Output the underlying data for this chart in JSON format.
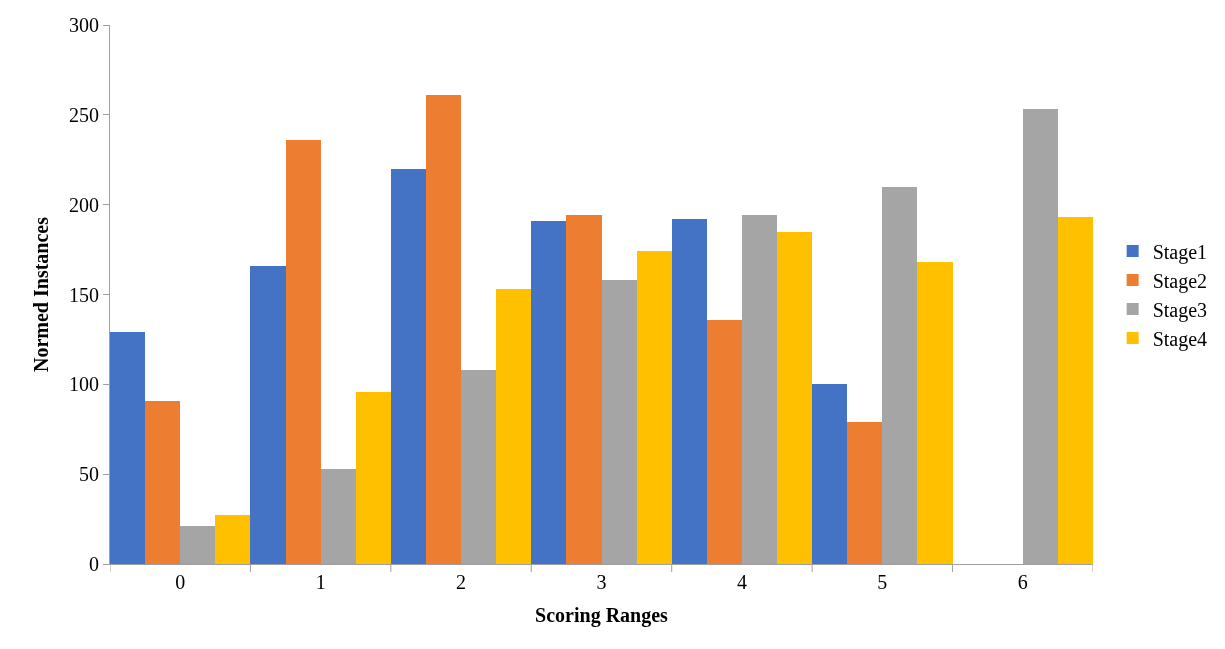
{
  "chart_data": {
    "type": "bar",
    "xlabel": "Scoring Ranges",
    "ylabel": "Normed Instances",
    "categories": [
      "0",
      "1",
      "2",
      "3",
      "4",
      "5",
      "6"
    ],
    "series": [
      {
        "name": "Stage1",
        "color": "#4472c4",
        "values": [
          129,
          166,
          220,
          191,
          192,
          100,
          0
        ]
      },
      {
        "name": "Stage2",
        "color": "#ed7d31",
        "values": [
          91,
          236,
          261,
          194,
          136,
          79,
          0
        ]
      },
      {
        "name": "Stage3",
        "color": "#a5a5a5",
        "values": [
          21,
          53,
          108,
          158,
          194,
          210,
          253
        ]
      },
      {
        "name": "Stage4",
        "color": "#ffc000",
        "values": [
          27,
          96,
          153,
          174,
          185,
          168,
          193
        ]
      }
    ],
    "ylim": [
      0,
      300
    ],
    "yticks": [
      0,
      50,
      100,
      150,
      200,
      250,
      300
    ],
    "legend": "right"
  }
}
